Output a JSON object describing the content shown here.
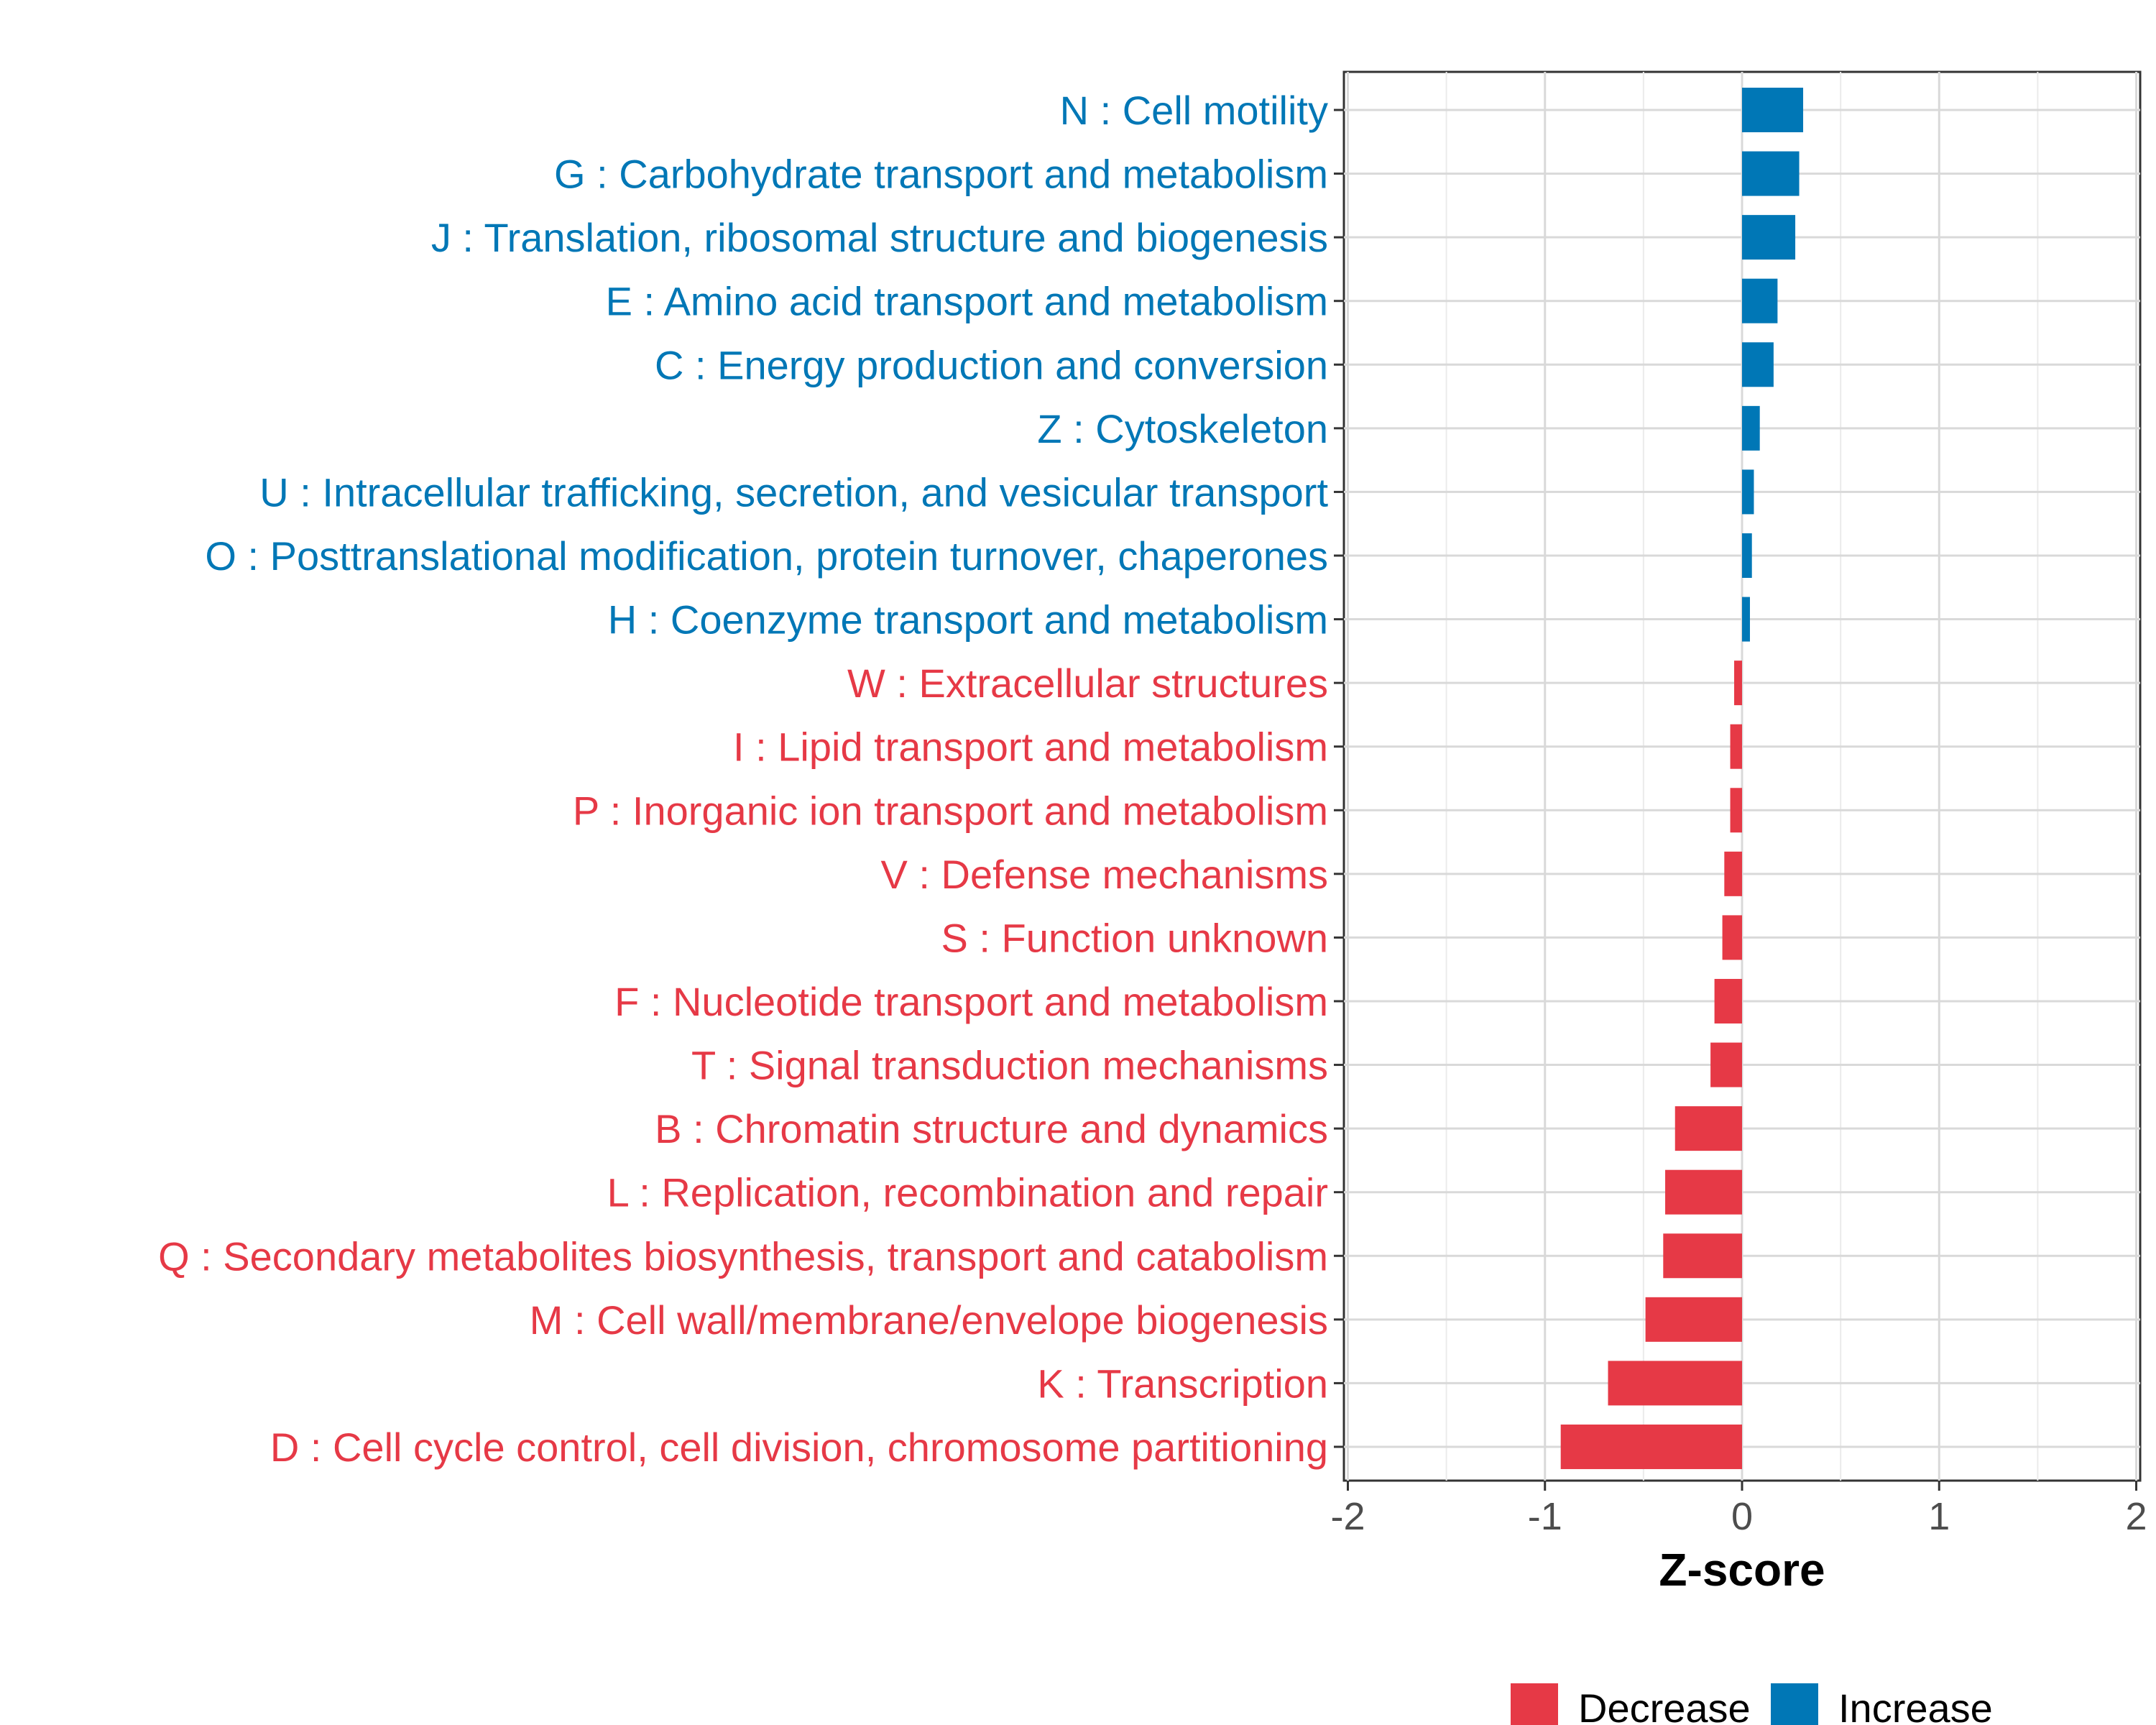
{
  "chart_data": {
    "type": "bar",
    "orientation": "horizontal",
    "xlabel": "Z-score",
    "xlim": [
      -2.02,
      2.02
    ],
    "xticks": [
      -2,
      -1,
      0,
      1,
      2
    ],
    "xtick_labels": [
      "-2",
      "-1",
      "0",
      "1",
      "2"
    ],
    "grid": true,
    "legend_position": "bottom",
    "colors": {
      "Decrease": "#E63946",
      "Increase": "#0077B6"
    },
    "categories": [
      "N : Cell motility",
      "G : Carbohydrate transport and metabolism",
      "J : Translation, ribosomal structure and biogenesis",
      "E : Amino acid transport and metabolism",
      "C : Energy production and conversion",
      "Z : Cytoskeleton",
      "U : Intracellular trafficking, secretion, and vesicular transport",
      "O : Posttranslational modification, protein turnover, chaperones",
      "H : Coenzyme transport and metabolism",
      "W : Extracellular structures",
      "I : Lipid transport and metabolism",
      "P : Inorganic ion transport and metabolism",
      "V : Defense mechanisms",
      "S : Function unknown",
      "F : Nucleotide transport and metabolism",
      "T : Signal transduction mechanisms",
      "B : Chromatin structure and dynamics",
      "L : Replication, recombination and repair",
      "Q : Secondary metabolites biosynthesis, transport and catabolism",
      "M : Cell wall/membrane/envelope biogenesis",
      "K : Transcription",
      "D : Cell cycle control, cell division, chromosome partitioning"
    ],
    "values": [
      0.31,
      0.29,
      0.27,
      0.18,
      0.16,
      0.09,
      0.06,
      0.05,
      0.04,
      -0.04,
      -0.06,
      -0.06,
      -0.09,
      -0.1,
      -0.14,
      -0.16,
      -0.34,
      -0.39,
      -0.4,
      -0.49,
      -0.68,
      -0.92
    ],
    "groups": [
      "Increase",
      "Increase",
      "Increase",
      "Increase",
      "Increase",
      "Increase",
      "Increase",
      "Increase",
      "Increase",
      "Decrease",
      "Decrease",
      "Decrease",
      "Decrease",
      "Decrease",
      "Decrease",
      "Decrease",
      "Decrease",
      "Decrease",
      "Decrease",
      "Decrease",
      "Decrease",
      "Decrease"
    ],
    "legend": [
      {
        "name": "Decrease",
        "color": "#E63946"
      },
      {
        "name": "Increase",
        "color": "#0077B6"
      }
    ]
  }
}
